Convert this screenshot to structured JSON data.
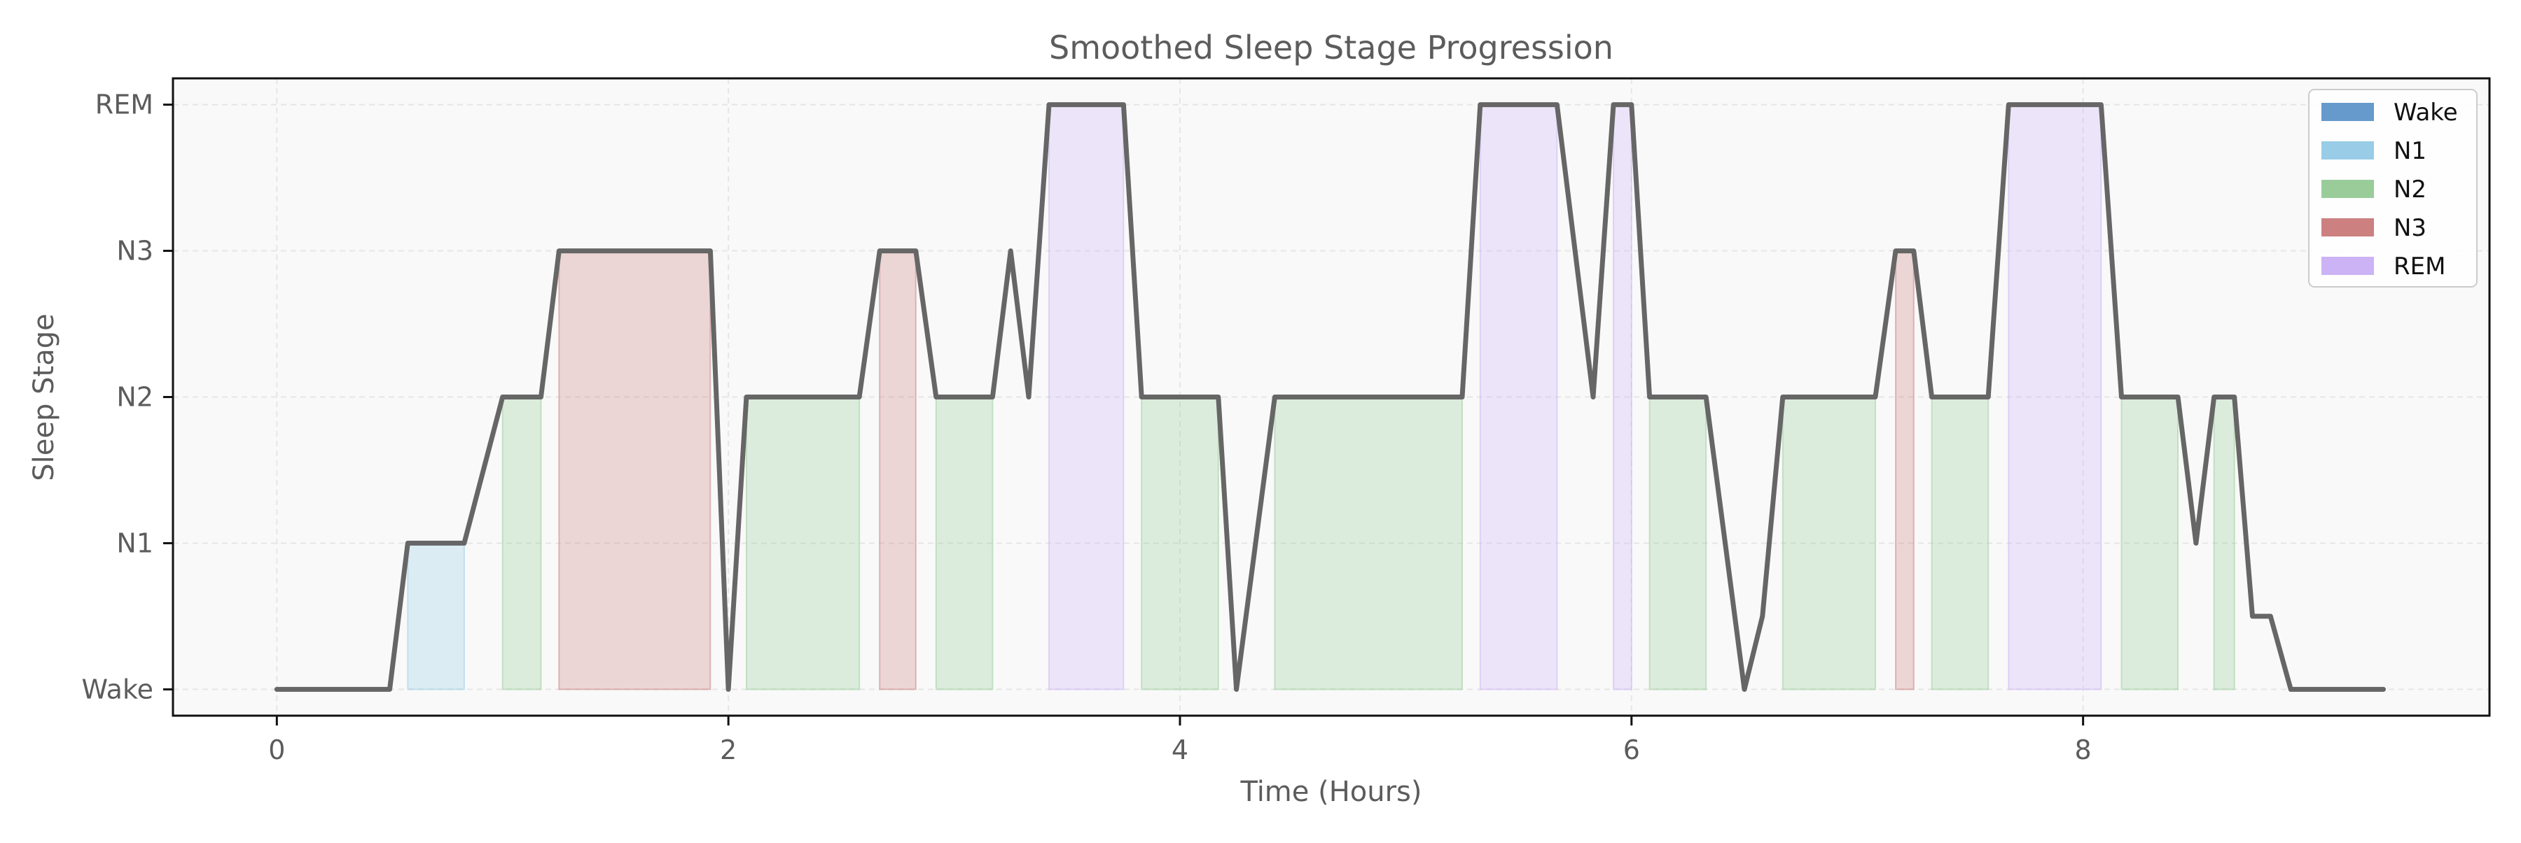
{
  "chart_data": {
    "type": "line",
    "title": "Smoothed Sleep Stage Progression",
    "xlabel": "Time (Hours)",
    "ylabel": "Sleep Stage",
    "xlim": [
      -0.46,
      9.8
    ],
    "ylim": [
      -0.18,
      4.18
    ],
    "x_ticks": [
      0,
      2,
      4,
      6,
      8
    ],
    "y_ticks": [
      {
        "value": 0,
        "label": "Wake"
      },
      {
        "value": 1,
        "label": "N1"
      },
      {
        "value": 2,
        "label": "N2"
      },
      {
        "value": 3,
        "label": "N3"
      },
      {
        "value": 4,
        "label": "REM"
      }
    ],
    "grid": true,
    "legend_position": "top-right",
    "stage_colors": {
      "Wake": "#6699cc",
      "N1": "#99cce6",
      "N2": "#99cc99",
      "N3": "#cc8080",
      "REM": "#ccb3f5"
    },
    "line_color": "#666666",
    "legend": [
      "Wake",
      "N1",
      "N2",
      "N3",
      "REM"
    ],
    "series": [
      {
        "x": [
          0,
          0.5,
          0.58,
          0.83,
          1.0,
          1.17,
          1.25,
          1.92,
          2.0,
          2.08,
          2.58,
          2.67,
          2.83,
          2.92,
          3.17,
          3.25,
          3.33,
          3.42,
          3.75,
          3.83,
          4.17,
          4.25,
          4.42,
          5.25,
          5.33,
          5.67,
          5.83,
          5.92,
          6.0,
          6.08,
          6.33,
          6.5,
          6.58,
          6.67,
          7.08,
          7.17,
          7.25,
          7.33,
          7.58,
          7.67,
          8.08,
          8.17,
          8.42,
          8.5,
          8.58,
          8.67,
          8.75,
          8.83,
          8.92,
          9.33
        ],
        "y": [
          0,
          0,
          1,
          1,
          2,
          2,
          3,
          3,
          0,
          2,
          2,
          3,
          3,
          2,
          2,
          3,
          2,
          4,
          4,
          2,
          2,
          0,
          2,
          2,
          4,
          4,
          2,
          4,
          4,
          2,
          2,
          0,
          0.5,
          2,
          2,
          3,
          3,
          2,
          2,
          4,
          4,
          2,
          2,
          1,
          2,
          2,
          0.5,
          0.5,
          0,
          0
        ]
      }
    ],
    "stage_segments": [
      {
        "stage": "N1",
        "x0": 0.58,
        "x1": 0.83
      },
      {
        "stage": "N2",
        "x0": 1.0,
        "x1": 1.17
      },
      {
        "stage": "N3",
        "x0": 1.25,
        "x1": 1.92
      },
      {
        "stage": "N2",
        "x0": 2.08,
        "x1": 2.58
      },
      {
        "stage": "N3",
        "x0": 2.67,
        "x1": 2.83
      },
      {
        "stage": "N2",
        "x0": 2.92,
        "x1": 3.17
      },
      {
        "stage": "REM",
        "x0": 3.42,
        "x1": 3.75
      },
      {
        "stage": "N2",
        "x0": 3.83,
        "x1": 4.17
      },
      {
        "stage": "N2",
        "x0": 4.42,
        "x1": 5.25
      },
      {
        "stage": "REM",
        "x0": 5.33,
        "x1": 5.67
      },
      {
        "stage": "REM",
        "x0": 5.92,
        "x1": 6.0
      },
      {
        "stage": "N2",
        "x0": 6.08,
        "x1": 6.33
      },
      {
        "stage": "N2",
        "x0": 6.67,
        "x1": 7.08
      },
      {
        "stage": "N3",
        "x0": 7.17,
        "x1": 7.25
      },
      {
        "stage": "N2",
        "x0": 7.33,
        "x1": 7.58
      },
      {
        "stage": "REM",
        "x0": 7.67,
        "x1": 8.08
      },
      {
        "stage": "N2",
        "x0": 8.17,
        "x1": 8.42
      },
      {
        "stage": "N2",
        "x0": 8.58,
        "x1": 8.67
      }
    ]
  }
}
